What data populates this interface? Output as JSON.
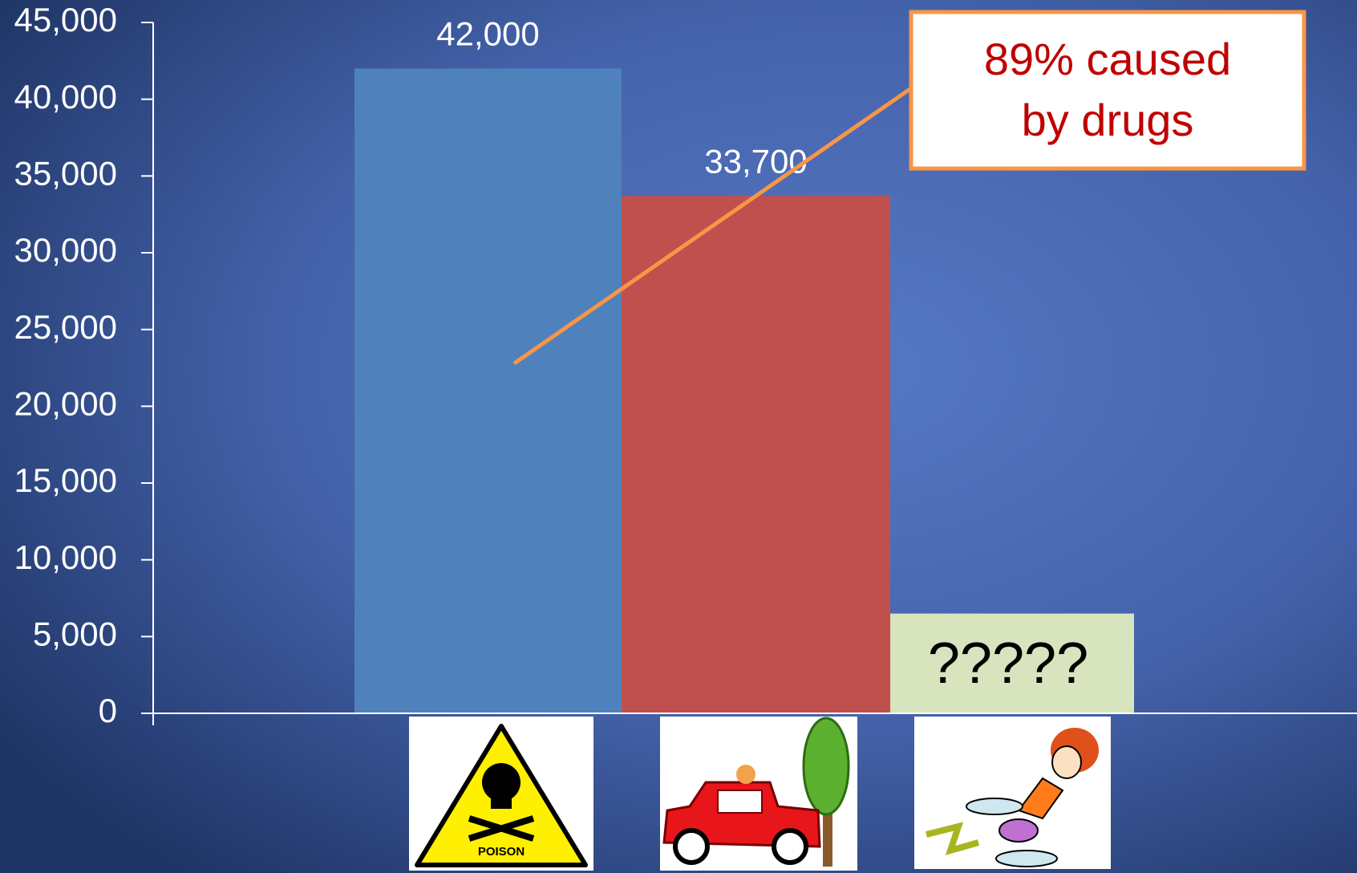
{
  "chart_data": {
    "type": "bar",
    "categories": [
      null,
      null,
      null
    ],
    "values": [
      42000,
      33700,
      6500
    ],
    "value_labels": [
      "42,000",
      "33,700",
      null
    ],
    "colors": [
      "#4f81bd",
      "#c0504d",
      "#d7e4bd"
    ],
    "bar_note": "?????",
    "ylim": [
      0,
      45000
    ],
    "yticks": [
      {
        "value": 0,
        "label": "0"
      },
      {
        "value": 5000,
        "label": "5,000"
      },
      {
        "value": 10000,
        "label": "10,000"
      },
      {
        "value": 15000,
        "label": "15,000"
      },
      {
        "value": 20000,
        "label": "20,000"
      },
      {
        "value": 25000,
        "label": "25,000"
      },
      {
        "value": 30000,
        "label": "30,000"
      },
      {
        "value": 35000,
        "label": "35,000"
      },
      {
        "value": 40000,
        "label": "40,000"
      },
      {
        "value": 45000,
        "label": "45,000"
      }
    ],
    "grid": false,
    "callout": {
      "lines": [
        "89% caused",
        "by drugs"
      ],
      "color": "#c00000",
      "border": "#f79646"
    },
    "icon_text": "POISON"
  }
}
